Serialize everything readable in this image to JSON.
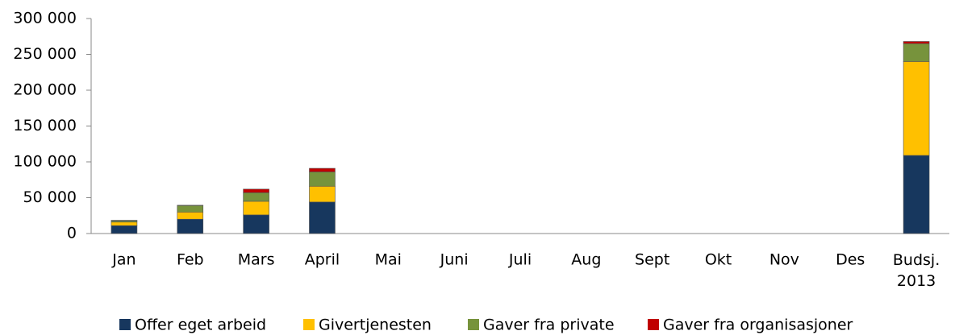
{
  "chart_data": {
    "type": "bar",
    "stacked": true,
    "categories": [
      "Jan",
      "Feb",
      "Mars",
      "April",
      "Mai",
      "Juni",
      "Juli",
      "Aug",
      "Sept",
      "Okt",
      "Nov",
      "Des",
      "Budsj.\n2013"
    ],
    "series": [
      {
        "name": "Offer eget arbeid",
        "color": "#17375e",
        "values": [
          11000,
          20000,
          26000,
          44000,
          null,
          null,
          null,
          null,
          null,
          null,
          null,
          null,
          109000
        ]
      },
      {
        "name": "Givertjenesten",
        "color": "#ffc000",
        "values": [
          5000,
          10000,
          19000,
          22000,
          null,
          null,
          null,
          null,
          null,
          null,
          null,
          null,
          131000
        ]
      },
      {
        "name": "Gaver fra private",
        "color": "#77933c",
        "values": [
          2000,
          9000,
          12000,
          20000,
          null,
          null,
          null,
          null,
          null,
          null,
          null,
          null,
          25000
        ]
      },
      {
        "name": "Gaver fra organisasjoner",
        "color": "#c00000",
        "values": [
          500,
          500,
          5000,
          5000,
          null,
          null,
          null,
          null,
          null,
          null,
          null,
          null,
          3000
        ]
      }
    ],
    "ylim": [
      0,
      300000
    ],
    "yticks": [
      0,
      {
        "value": 50000,
        "label": "50 000"
      },
      {
        "value": 100000,
        "label": "100 000"
      },
      {
        "value": 150000,
        "label": "150 000"
      },
      {
        "value": 200000,
        "label": "200 000"
      },
      {
        "value": 250000,
        "label": "250 000"
      },
      {
        "value": 300000,
        "label": "300 000"
      }
    ],
    "grid": false,
    "legend": "bottom"
  }
}
